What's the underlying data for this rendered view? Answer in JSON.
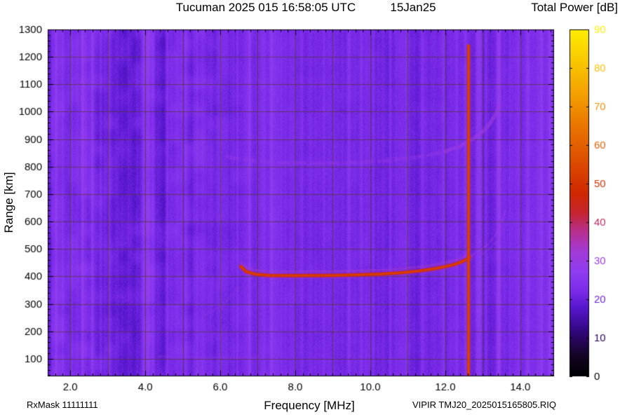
{
  "title": {
    "main": "Tucuman 2025 015 16:58:05 UTC",
    "date": "15Jan25"
  },
  "colorbar": {
    "title": "Total Power [dB]",
    "min": 0,
    "max": 90,
    "ticks": [
      0,
      10,
      20,
      30,
      40,
      50,
      60,
      70,
      80,
      90
    ]
  },
  "axes": {
    "x": {
      "label": "Frequency [MHz]",
      "min": 1.4,
      "max": 14.9,
      "major_ticks": [
        2,
        4,
        6,
        8,
        10,
        12,
        14
      ],
      "major_labels": [
        "2.0",
        "4.0",
        "6.0",
        "8.0",
        "10.0",
        "12.0",
        "14.0"
      ],
      "minor_step": 0.2,
      "grid_step": 1
    },
    "y": {
      "label": "Range [km]",
      "min": 36,
      "max": 1300,
      "major_ticks": [
        100,
        200,
        300,
        400,
        500,
        600,
        700,
        800,
        900,
        1000,
        1100,
        1200,
        1300
      ],
      "minor_step": 20
    }
  },
  "footer": {
    "rx_mask": "RxMask 11111111",
    "station_file": "VIPIR  TMJ20_2025015165805.RIQ"
  },
  "chart_data": {
    "type": "heatmap",
    "station": "Tucuman",
    "utc": "2025 015 16:58:05",
    "date": "15Jan25",
    "xlabel": "Frequency [MHz]",
    "ylabel": "Range [km]",
    "zlabel": "Total Power [dB]",
    "xlim": [
      1.4,
      14.9
    ],
    "ylim": [
      36,
      1300
    ],
    "zlim": [
      0,
      90
    ],
    "grid": {
      "color": "rgba(70,58,0,0.55)",
      "x_step_MHz": 1,
      "y_step_km": 100
    },
    "palette": [
      {
        "t": 0.0,
        "c": "#000000"
      },
      {
        "t": 0.06,
        "c": "#140425"
      },
      {
        "t": 0.13,
        "c": "#32077c"
      },
      {
        "t": 0.19,
        "c": "#5214c8"
      },
      {
        "t": 0.245,
        "c": "#7b2be8"
      },
      {
        "t": 0.3,
        "c": "#8f3cf2"
      },
      {
        "t": 0.36,
        "c": "#a33ad8"
      },
      {
        "t": 0.42,
        "c": "#b82f8a"
      },
      {
        "t": 0.47,
        "c": "#c62430"
      },
      {
        "t": 0.53,
        "c": "#d02800"
      },
      {
        "t": 0.62,
        "c": "#dd4d00"
      },
      {
        "t": 0.72,
        "c": "#ea7500"
      },
      {
        "t": 0.82,
        "c": "#f4a300"
      },
      {
        "t": 1.0,
        "c": "#ffee00"
      }
    ],
    "noise": {
      "base_dB": 22,
      "column_walk_amp": 0.85,
      "pixel_amp": 1.25,
      "blotch_amp": 1.7,
      "blotch_full_below_MHz": 5.4,
      "blotch_min_weight": 0.3
    },
    "rfi_stripes": [
      {
        "f": 1.45,
        "hw": 0.05,
        "b": -2
      },
      {
        "f": 1.62,
        "hw": 0.05,
        "b": 3
      },
      {
        "f": 1.8,
        "hw": 0.04,
        "b": 2
      },
      {
        "f": 2.02,
        "hw": 0.05,
        "b": 3
      },
      {
        "f": 2.32,
        "hw": 0.05,
        "b": 4
      },
      {
        "f": 2.58,
        "hw": 0.04,
        "b": 2.5
      },
      {
        "f": 2.8,
        "hw": 0.04,
        "b": 2
      },
      {
        "f": 3.02,
        "hw": 0.04,
        "b": 2.5
      },
      {
        "f": 3.3,
        "hw": 0.25,
        "b": -1.4
      },
      {
        "f": 3.68,
        "hw": 0.2,
        "b": -1.2
      },
      {
        "f": 4.02,
        "hw": 0.14,
        "b": 4
      },
      {
        "f": 4.2,
        "hw": 0.05,
        "b": 3
      },
      {
        "f": 4.45,
        "hw": 0.1,
        "b": -1.2
      },
      {
        "f": 4.58,
        "hw": 0.04,
        "b": 2.5
      },
      {
        "f": 4.8,
        "hw": 0.1,
        "b": -1
      },
      {
        "f": 5.08,
        "hw": 0.05,
        "b": 3
      },
      {
        "f": 5.38,
        "hw": 0.04,
        "b": 2
      },
      {
        "f": 6.0,
        "hw": 0.04,
        "b": 2
      },
      {
        "f": 6.45,
        "hw": 0.035,
        "b": 2
      },
      {
        "f": 6.78,
        "hw": 0.05,
        "b": 3.5
      },
      {
        "f": 7.35,
        "hw": 0.05,
        "b": 3
      },
      {
        "f": 7.62,
        "hw": 0.035,
        "b": 1.5
      },
      {
        "f": 8.18,
        "hw": 0.04,
        "b": 2
      },
      {
        "f": 8.75,
        "hw": 0.035,
        "b": 1.5
      },
      {
        "f": 9.42,
        "hw": 0.06,
        "b": 3.5
      },
      {
        "f": 9.75,
        "hw": 0.035,
        "b": 1.5
      },
      {
        "f": 10.08,
        "hw": 0.05,
        "b": 3
      },
      {
        "f": 10.52,
        "hw": 0.04,
        "b": 2
      },
      {
        "f": 11.0,
        "hw": 0.035,
        "b": 1.5
      },
      {
        "f": 11.38,
        "hw": 0.06,
        "b": 3.5
      },
      {
        "f": 11.95,
        "hw": 0.05,
        "b": 3
      },
      {
        "f": 12.3,
        "hw": 0.035,
        "b": 1.5
      },
      {
        "f": 12.52,
        "hw": 0.04,
        "b": 2.5
      },
      {
        "f": 12.88,
        "hw": 0.11,
        "b": 6
      },
      {
        "f": 13.08,
        "hw": 0.05,
        "b": 3
      },
      {
        "f": 13.42,
        "hw": 0.08,
        "b": 6
      },
      {
        "f": 13.7,
        "hw": 0.035,
        "b": 1.5
      },
      {
        "f": 13.95,
        "hw": 0.04,
        "b": 2.5
      },
      {
        "f": 14.2,
        "hw": 0.06,
        "b": 4
      },
      {
        "f": 14.55,
        "hw": 0.05,
        "b": 3
      },
      {
        "f": 14.78,
        "hw": 0.04,
        "b": 2.5
      }
    ],
    "traces": {
      "f_layer_echo": {
        "power_dB": 49,
        "points": [
          [
            6.55,
            436
          ],
          [
            6.7,
            417
          ],
          [
            6.95,
            408
          ],
          [
            7.3,
            404
          ],
          [
            8.0,
            403
          ],
          [
            9.0,
            404
          ],
          [
            9.7,
            406
          ],
          [
            10.3,
            409
          ],
          [
            10.8,
            413
          ],
          [
            11.3,
            420
          ],
          [
            11.7,
            428
          ],
          [
            12.0,
            436
          ],
          [
            12.25,
            444
          ],
          [
            12.45,
            454
          ],
          [
            12.58,
            463
          ],
          [
            12.65,
            470
          ]
        ]
      },
      "critical_frequency_line": {
        "f_MHz": 12.62,
        "top_km": 1245,
        "power_dB": 50
      },
      "second_hop_echo": {
        "power_dB": 29,
        "points": [
          [
            6.2,
            835
          ],
          [
            6.8,
            822
          ],
          [
            7.5,
            815
          ],
          [
            8.5,
            812
          ],
          [
            9.5,
            814
          ],
          [
            10.3,
            820
          ],
          [
            11.0,
            830
          ],
          [
            11.6,
            843
          ],
          [
            12.0,
            856
          ],
          [
            12.4,
            875
          ],
          [
            12.7,
            898
          ],
          [
            12.95,
            922
          ],
          [
            13.15,
            950
          ],
          [
            13.32,
            985
          ],
          [
            13.45,
            1020
          ]
        ]
      },
      "x_mode_echo": {
        "power_dB": 30,
        "points": [
          [
            12.7,
            476
          ],
          [
            12.9,
            492
          ],
          [
            13.1,
            513
          ],
          [
            13.3,
            543
          ],
          [
            13.45,
            578
          ],
          [
            13.55,
            615
          ],
          [
            13.62,
            650
          ]
        ]
      },
      "x_mode_echo2": {
        "power_dB": 28,
        "points": [
          [
            12.98,
            480
          ],
          [
            13.18,
            500
          ],
          [
            13.38,
            528
          ],
          [
            13.52,
            558
          ],
          [
            13.62,
            590
          ]
        ]
      },
      "sporadic_e_echo": {
        "power_dB": 27,
        "points": [
          [
            4.35,
            108
          ],
          [
            5.5,
            104
          ],
          [
            7.15,
            103
          ]
        ]
      },
      "oblique_echo": {
        "power_dB": 26,
        "points": [
          [
            5.55,
            255
          ],
          [
            6.1,
            300
          ],
          [
            6.5,
            360
          ]
        ]
      }
    }
  }
}
